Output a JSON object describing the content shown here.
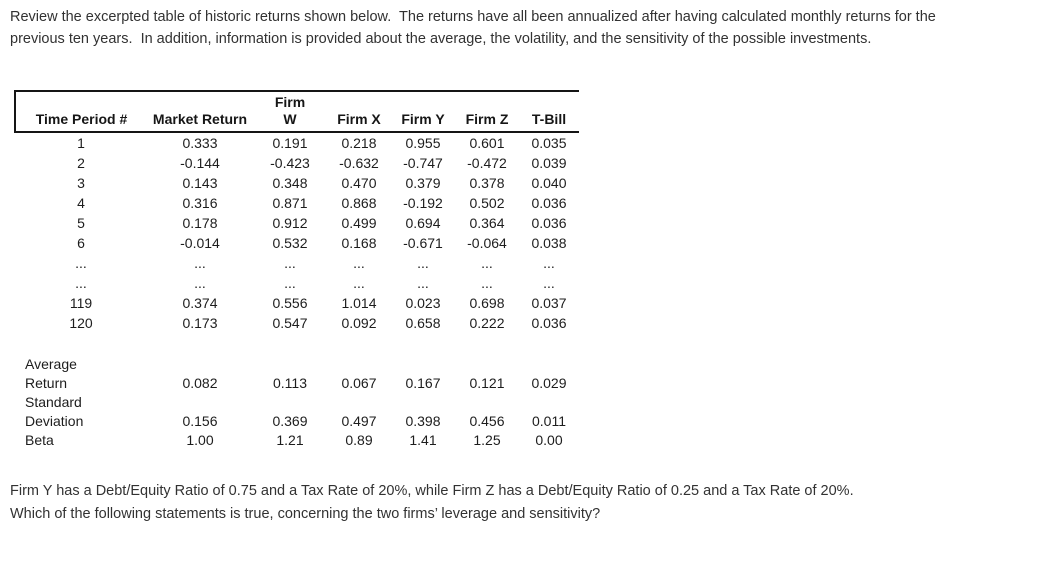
{
  "intro": {
    "text": "Review the excerpted table of historic returns shown below.  The returns have all been annualized after having calculated monthly returns for the\nprevious ten years.  In addition, information is provided about the average, the volatility, and the sensitivity of the possible investments."
  },
  "table": {
    "columns": [
      "Time Period #",
      "Market Return",
      "Firm\nW",
      "Firm X",
      "Firm Y",
      "Firm Z",
      "T-Bill"
    ],
    "rows": [
      [
        "1",
        "0.333",
        "0.191",
        "0.218",
        "0.955",
        "0.601",
        "0.035"
      ],
      [
        "2",
        "-0.144",
        "-0.423",
        "-0.632",
        "-0.747",
        "-0.472",
        "0.039"
      ],
      [
        "3",
        "0.143",
        "0.348",
        "0.470",
        "0.379",
        "0.378",
        "0.040"
      ],
      [
        "4",
        "0.316",
        "0.871",
        "0.868",
        "-0.192",
        "0.502",
        "0.036"
      ],
      [
        "5",
        "0.178",
        "0.912",
        "0.499",
        "0.694",
        "0.364",
        "0.036"
      ],
      [
        "6",
        "-0.014",
        "0.532",
        "0.168",
        "-0.671",
        "-0.064",
        "0.038"
      ],
      [
        "...",
        "...",
        "...",
        "...",
        "...",
        "...",
        "..."
      ],
      [
        "...",
        "...",
        "...",
        "...",
        "...",
        "...",
        "..."
      ],
      [
        "119",
        "0.374",
        "0.556",
        "1.014",
        "0.023",
        "0.698",
        "0.037"
      ],
      [
        "120",
        "0.173",
        "0.547",
        "0.092",
        "0.658",
        "0.222",
        "0.036"
      ]
    ],
    "stats": [
      {
        "label": "Average\nReturn",
        "values": [
          "0.082",
          "0.113",
          "0.067",
          "0.167",
          "0.121",
          "0.029"
        ]
      },
      {
        "label": "Standard\nDeviation",
        "values": [
          "0.156",
          "0.369",
          "0.497",
          "0.398",
          "0.456",
          "0.011"
        ]
      },
      {
        "label": "Beta",
        "values": [
          "1.00",
          "1.21",
          "0.89",
          "1.41",
          "1.25",
          "0.00"
        ]
      }
    ]
  },
  "question": {
    "text": "Firm Y has a Debt/Equity Ratio of 0.75 and a Tax Rate of 20%, while Firm Z has a Debt/Equity Ratio of 0.25 and a Tax Rate of 20%.\nWhich of the following statements is true, concerning the two firms’ leverage and sensitivity?"
  }
}
